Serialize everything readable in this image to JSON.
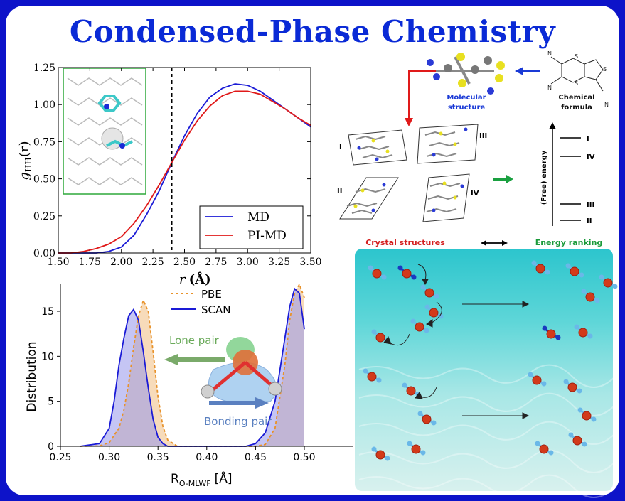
{
  "page_title": "Condensed-Phase Chemistry",
  "chart_data": [
    {
      "type": "line",
      "xlabel_var": "r",
      "xlabel_unit": "(Å)",
      "ylabel_var": "g",
      "ylabel_sub": "HH",
      "ylabel_arg": "(r)",
      "xlim": [
        1.5,
        3.5
      ],
      "ylim": [
        0.0,
        1.25
      ],
      "xticks": [
        "1.50",
        "1.75",
        "2.00",
        "2.25",
        "2.50",
        "2.75",
        "3.00",
        "3.25",
        "3.50"
      ],
      "yticks": [
        "0.00",
        "0.25",
        "0.50",
        "0.75",
        "1.00",
        "1.25"
      ],
      "vline_x": 2.4,
      "legend_position": "bottom-right",
      "series": [
        {
          "name": "MD",
          "color": "#1a1ad6",
          "x": [
            1.5,
            1.8,
            1.9,
            2.0,
            2.1,
            2.2,
            2.3,
            2.4,
            2.5,
            2.6,
            2.7,
            2.8,
            2.9,
            3.0,
            3.1,
            3.2,
            3.3,
            3.4,
            3.5
          ],
          "y": [
            0.0,
            0.0,
            0.01,
            0.04,
            0.12,
            0.26,
            0.42,
            0.61,
            0.79,
            0.94,
            1.05,
            1.11,
            1.14,
            1.13,
            1.09,
            1.03,
            0.97,
            0.91,
            0.85
          ]
        },
        {
          "name": "PI-MD",
          "color": "#e01a1a",
          "x": [
            1.5,
            1.6,
            1.7,
            1.8,
            1.9,
            2.0,
            2.1,
            2.2,
            2.3,
            2.4,
            2.5,
            2.6,
            2.7,
            2.8,
            2.9,
            3.0,
            3.1,
            3.2,
            3.3,
            3.4,
            3.5
          ],
          "y": [
            0.0,
            0.0,
            0.01,
            0.03,
            0.06,
            0.11,
            0.2,
            0.32,
            0.46,
            0.61,
            0.76,
            0.89,
            0.99,
            1.06,
            1.09,
            1.09,
            1.07,
            1.02,
            0.97,
            0.91,
            0.86
          ]
        }
      ]
    },
    {
      "type": "area",
      "xlabel_main": "R",
      "xlabel_sub": "O-MLWF",
      "xlabel_unit": "[Å]",
      "ylabel": "Distribution",
      "xlim": [
        0.25,
        0.5
      ],
      "ylim": [
        0,
        18
      ],
      "xticks": [
        "0.25",
        "0.30",
        "0.35",
        "0.40",
        "0.45",
        "0.50"
      ],
      "yticks": [
        "0",
        "5",
        "10",
        "15"
      ],
      "legend_position": "top-right",
      "series": [
        {
          "name": "PBE",
          "color": "#e8922a",
          "style": "dashed",
          "x": [
            0.27,
            0.29,
            0.3,
            0.31,
            0.315,
            0.32,
            0.325,
            0.33,
            0.335,
            0.34,
            0.345,
            0.35,
            0.355,
            0.36,
            0.37,
            0.45,
            0.46,
            0.47,
            0.48,
            0.485,
            0.49,
            0.495,
            0.5
          ],
          "y": [
            0.0,
            0.05,
            0.4,
            2.0,
            4.0,
            7.0,
            11.0,
            14.5,
            16.2,
            15.0,
            10.5,
            5.5,
            2.2,
            0.7,
            0.0,
            0.0,
            0.2,
            2.0,
            9.0,
            14.0,
            17.0,
            18.0,
            16.5
          ]
        },
        {
          "name": "SCAN",
          "color": "#1a1ad6",
          "style": "solid",
          "x": [
            0.27,
            0.29,
            0.3,
            0.305,
            0.31,
            0.315,
            0.32,
            0.325,
            0.33,
            0.335,
            0.34,
            0.345,
            0.35,
            0.355,
            0.36,
            0.44,
            0.45,
            0.46,
            0.47,
            0.48,
            0.485,
            0.49,
            0.495,
            0.5
          ],
          "y": [
            0.0,
            0.3,
            2.0,
            5.0,
            9.0,
            12.0,
            14.5,
            15.2,
            14.0,
            10.5,
            6.5,
            3.0,
            1.0,
            0.3,
            0.0,
            0.0,
            0.3,
            1.5,
            5.0,
            12.0,
            15.5,
            17.5,
            17.0,
            13.0
          ]
        }
      ]
    }
  ],
  "annotations": {
    "lone_pair": "Lone pair",
    "bonding_pair": "Bonding pair"
  },
  "crystal": {
    "molecular_structure_line1": "Molecular",
    "molecular_structure_line2": "structure",
    "chemical_formula_line1": "Chemical",
    "chemical_formula_line2": "formula",
    "structure_labels": [
      "I",
      "II",
      "III",
      "IV"
    ],
    "energy_axis": "(Free) energy",
    "energy_levels": [
      "I",
      "IV",
      "III",
      "II"
    ],
    "crystal_structures": "Crystal structures",
    "energy_ranking": "Energy ranking"
  },
  "colors": {
    "frame": "#0d13c9",
    "title": "#0a2ad6",
    "crystal_structures": "#d42020",
    "energy_ranking": "#1a9a3a",
    "molecular_structure": "#1a3ad6"
  }
}
